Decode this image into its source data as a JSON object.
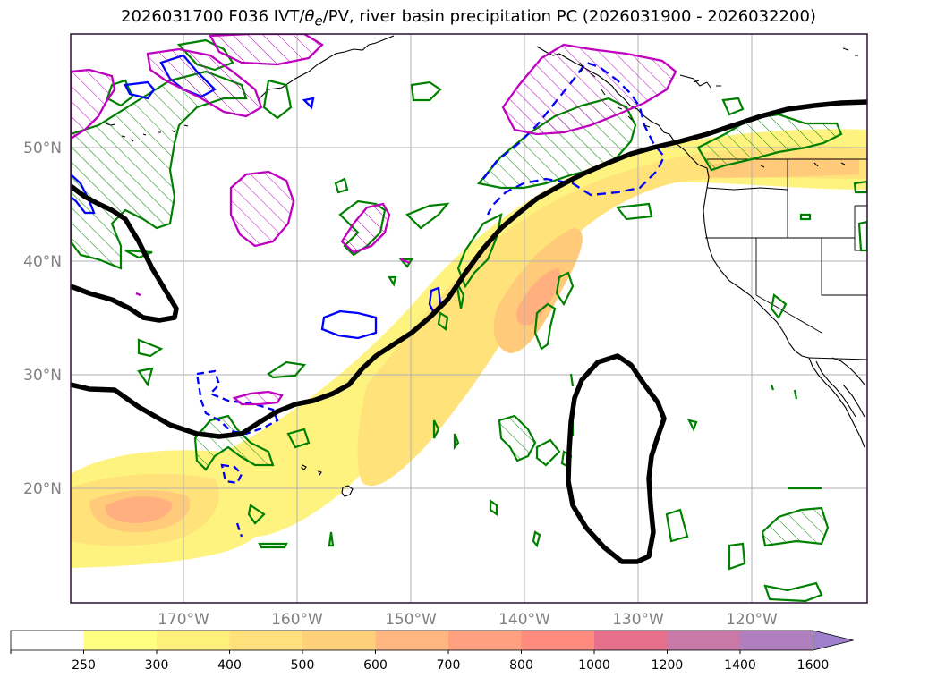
{
  "title": {
    "run": "2026031700",
    "forecast": "F036",
    "fields_prefix": "IVT/",
    "theta_symbol": "θ",
    "theta_subscript": "e",
    "fields_suffix": "/PV, river basin precipitation PC (2026031900 - 2026032200)"
  },
  "map": {
    "lat_labels": [
      "50°N",
      "40°N",
      "30°N",
      "20°N"
    ],
    "lon_labels": [
      "170°W",
      "160°W",
      "150°W",
      "140°W",
      "130°W",
      "120°W"
    ],
    "frame_color": "#2b1036",
    "grid_color": "#b0b0b0"
  },
  "legend_colors": {
    "black_contour": "#000000",
    "green_contour": "#008000",
    "blue_contour": "#0000ff",
    "magenta_contour": "#bf00bf",
    "ivt_shading": "#ffea4a"
  },
  "colorbar": {
    "ticks": [
      "250",
      "300",
      "400",
      "500",
      "600",
      "700",
      "800",
      "1000",
      "1200",
      "1400",
      "1600"
    ],
    "colors": [
      "#ffffff",
      "#ffff80",
      "#fff07a",
      "#ffe07a",
      "#ffd07a",
      "#ffb680",
      "#ffa080",
      "#ff8a7e",
      "#e6708c",
      "#c879a8",
      "#b07fbf",
      "#a07fcc"
    ],
    "extend": "max"
  }
}
